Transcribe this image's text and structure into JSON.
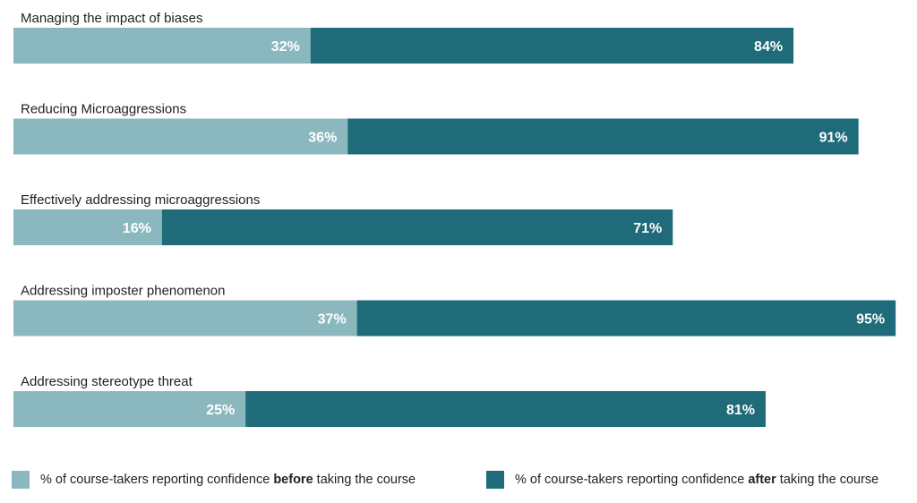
{
  "colors": {
    "before": "#8bb8bf",
    "after": "#1f6b7a",
    "label": "#1f1f1f",
    "value_text": "#ffffff"
  },
  "chart_data": {
    "type": "bar",
    "orientation": "horizontal",
    "layout": "before bar overlaid on after bar",
    "categories": [
      "Managing the impact of biases",
      "Reducing Microaggressions",
      "Effectively addressing microaggressions",
      "Addressing imposter phenomenon",
      "Addressing stereotype threat"
    ],
    "series": [
      {
        "name": "% of course-takers reporting confidence before taking the course",
        "values": [
          32,
          36,
          16,
          37,
          25
        ]
      },
      {
        "name": "% of course-takers reporting confidence after taking the course",
        "values": [
          84,
          91,
          71,
          95,
          81
        ]
      }
    ],
    "value_labels": {
      "before": [
        "32%",
        "36%",
        "16%",
        "37%",
        "25%"
      ],
      "after": [
        "84%",
        "91%",
        "71%",
        "95%",
        "81%"
      ]
    },
    "xlim": [
      0,
      95
    ],
    "grid": false,
    "legend_position": "bottom"
  },
  "legend": {
    "before": {
      "prefix": "% of course-takers reporting confidence ",
      "bold": "before",
      "suffix": " taking the course"
    },
    "after": {
      "prefix": "% of course-takers reporting confidence ",
      "bold": "after",
      "suffix": " taking the course"
    }
  }
}
